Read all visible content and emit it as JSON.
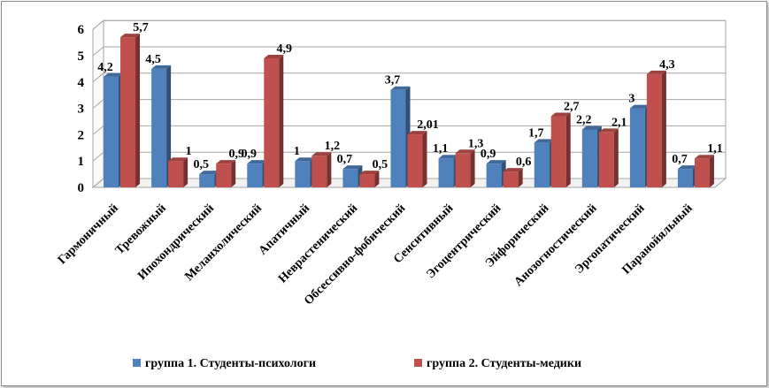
{
  "chart_data": {
    "type": "bar",
    "title": "",
    "xlabel": "",
    "ylabel": "",
    "ylim": [
      0,
      6
    ],
    "yticks": [
      "0",
      "1",
      "2",
      "3",
      "4",
      "5",
      "6"
    ],
    "grid": true,
    "legend_position": "bottom",
    "categories": [
      "Гармоничный",
      "Тревожный",
      "Ипохондрический",
      "Меланхолический",
      "Апатичный",
      "Неврастенический",
      "Обсессивно-фобический",
      "Сенситивный",
      "Эгоцентрический",
      "Эйфорический",
      "Анозогностический",
      "Эргопатический",
      "Паранойяльный"
    ],
    "series": [
      {
        "name": "группа 1. Студенты-психологи",
        "color": "#4f81bd",
        "values": [
          4.2,
          4.5,
          0.5,
          0.9,
          1,
          0.7,
          3.7,
          1.1,
          0.9,
          1.7,
          2.2,
          3,
          0.7
        ],
        "labels": [
          "4,2",
          "4,5",
          "0,5",
          "0,9",
          "1",
          "0,7",
          "3,7",
          "1,1",
          "0,9",
          "1,7",
          "2,2",
          "3",
          "0,7"
        ]
      },
      {
        "name": "группа 2. Студенты-медики",
        "color": "#c0504d",
        "values": [
          5.7,
          1,
          0.9,
          4.9,
          1.2,
          0.5,
          2.01,
          1.3,
          0.6,
          2.7,
          2.1,
          4.3,
          1.1
        ],
        "labels": [
          "5,7",
          "1",
          "0,9",
          "4,9",
          "1,2",
          "0,5",
          "2,01",
          "1,3",
          "0,6",
          "2,7",
          "2,1",
          "4,3",
          "1,1"
        ]
      }
    ]
  }
}
